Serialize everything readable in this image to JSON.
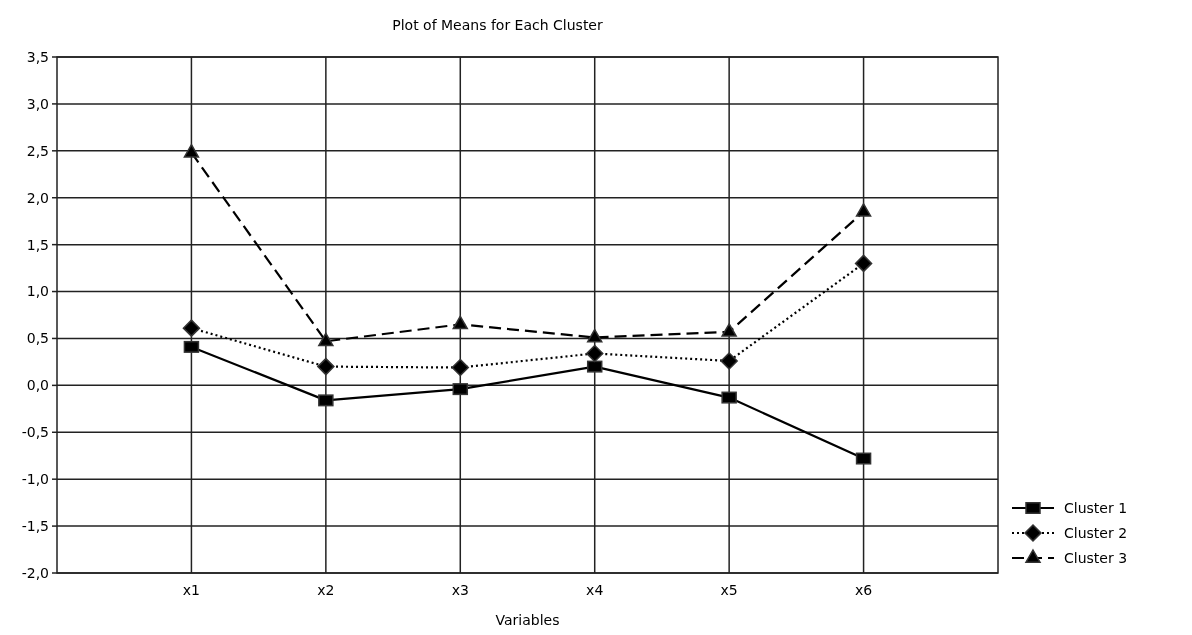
{
  "chart_data": {
    "type": "line",
    "title": "Plot of Means for Each Cluster",
    "xlabel": "Variables",
    "categories": [
      "x1",
      "x2",
      "x3",
      "x4",
      "x5",
      "x6"
    ],
    "series": [
      {
        "name": "Cluster 1",
        "color": "#000000",
        "marker": "square",
        "line_style": "solid",
        "values": [
          0.41,
          -0.16,
          -0.04,
          0.2,
          -0.13,
          -0.78
        ]
      },
      {
        "name": "Cluster 2",
        "color": "#000000",
        "marker": "diamond",
        "line_style": "dotted",
        "values": [
          0.61,
          0.2,
          0.19,
          0.34,
          0.26,
          1.3
        ]
      },
      {
        "name": "Cluster 3",
        "color": "#000000",
        "marker": "triangle",
        "line_style": "dashed",
        "values": [
          2.48,
          0.47,
          0.65,
          0.51,
          0.57,
          1.85
        ]
      }
    ],
    "ylim": [
      -2,
      3.5
    ],
    "yticks": [
      {
        "value": -2,
        "label": "-2,0"
      },
      {
        "value": -1.5,
        "label": "-1,5"
      },
      {
        "value": -1,
        "label": "-1,0"
      },
      {
        "value": -0.5,
        "label": "-0,5"
      },
      {
        "value": 0,
        "label": "0,0"
      },
      {
        "value": 0.5,
        "label": "0,5"
      },
      {
        "value": 1,
        "label": "1,0"
      },
      {
        "value": 1.5,
        "label": "1,5"
      },
      {
        "value": 2,
        "label": "2,0"
      },
      {
        "value": 2.5,
        "label": "2,5"
      },
      {
        "value": 3,
        "label": "3,0"
      },
      {
        "value": 3.5,
        "label": "3,5"
      }
    ],
    "grid": true,
    "legend": "bottom right"
  }
}
